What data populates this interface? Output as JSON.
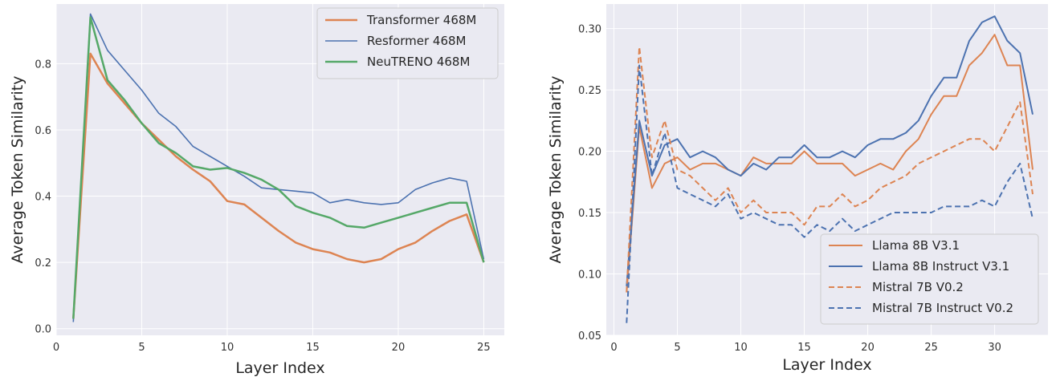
{
  "chart_data": [
    {
      "type": "line",
      "xlabel": "Layer Index",
      "ylabel": "Average Token Similarity",
      "xlim": [
        0,
        26.2
      ],
      "ylim": [
        -0.02,
        0.98
      ],
      "xticks": [
        0,
        5,
        10,
        15,
        20,
        25
      ],
      "yticks": [
        0.0,
        0.2,
        0.4,
        0.6,
        0.8
      ],
      "xtick_labels": [
        "0",
        "5",
        "10",
        "15",
        "20",
        "25"
      ],
      "ytick_labels": [
        "0.0",
        "0.2",
        "0.4",
        "0.6",
        "0.8"
      ],
      "grid": true,
      "legend_position": "top-right",
      "series": [
        {
          "name": "Transformer 468M",
          "color": "#dd8452",
          "dash": false,
          "width": 2.5,
          "x": [
            1,
            2,
            3,
            4,
            5,
            6,
            7,
            8,
            9,
            10,
            11,
            12,
            13,
            14,
            15,
            16,
            17,
            18,
            19,
            20,
            21,
            22,
            23,
            24,
            25
          ],
          "y": [
            0.03,
            0.83,
            0.74,
            0.68,
            0.62,
            0.57,
            0.52,
            0.48,
            0.445,
            0.385,
            0.375,
            0.335,
            0.295,
            0.26,
            0.24,
            0.23,
            0.21,
            0.2,
            0.21,
            0.24,
            0.26,
            0.295,
            0.325,
            0.345,
            0.2
          ]
        },
        {
          "name": "Resformer 468M",
          "color": "#4c72b0",
          "dash": false,
          "width": 1.6,
          "x": [
            1,
            2,
            3,
            4,
            5,
            6,
            7,
            8,
            9,
            10,
            11,
            12,
            13,
            14,
            15,
            16,
            17,
            18,
            19,
            20,
            21,
            22,
            23,
            24,
            25
          ],
          "y": [
            0.02,
            0.95,
            0.84,
            0.78,
            0.72,
            0.65,
            0.61,
            0.55,
            0.52,
            0.49,
            0.46,
            0.425,
            0.42,
            0.415,
            0.41,
            0.38,
            0.39,
            0.38,
            0.375,
            0.38,
            0.42,
            0.44,
            0.455,
            0.445,
            0.21
          ]
        },
        {
          "name": "NeuTRENO 468M",
          "color": "#55a868",
          "dash": false,
          "width": 2.5,
          "x": [
            1,
            2,
            3,
            4,
            5,
            6,
            7,
            8,
            9,
            10,
            11,
            12,
            13,
            14,
            15,
            16,
            17,
            18,
            19,
            20,
            21,
            22,
            23,
            24,
            25
          ],
          "y": [
            0.03,
            0.94,
            0.75,
            0.69,
            0.62,
            0.56,
            0.53,
            0.49,
            0.48,
            0.485,
            0.47,
            0.45,
            0.42,
            0.37,
            0.35,
            0.335,
            0.31,
            0.305,
            0.32,
            0.335,
            0.35,
            0.365,
            0.38,
            0.38,
            0.2
          ]
        }
      ]
    },
    {
      "type": "line",
      "xlabel": "Layer Index",
      "ylabel": "Average Token Similarity",
      "xlim": [
        -0.6,
        34.2
      ],
      "ylim": [
        0.05,
        0.32
      ],
      "xticks": [
        0,
        5,
        10,
        15,
        20,
        25,
        30
      ],
      "yticks": [
        0.05,
        0.1,
        0.15,
        0.2,
        0.25,
        0.3
      ],
      "xtick_labels": [
        "0",
        "5",
        "10",
        "15",
        "20",
        "25",
        "30"
      ],
      "ytick_labels": [
        "0.05",
        "0.10",
        "0.15",
        "0.20",
        "0.25",
        "0.30"
      ],
      "grid": true,
      "legend_position": "bottom-right",
      "series": [
        {
          "name": "Llama 8B V3.1",
          "color": "#dd8452",
          "dash": false,
          "width": 2,
          "x": [
            1,
            2,
            3,
            4,
            5,
            6,
            7,
            8,
            9,
            10,
            11,
            12,
            13,
            14,
            15,
            16,
            17,
            18,
            19,
            20,
            21,
            22,
            23,
            24,
            25,
            26,
            27,
            28,
            29,
            30,
            31,
            32,
            33
          ],
          "y": [
            0.085,
            0.22,
            0.17,
            0.19,
            0.195,
            0.185,
            0.19,
            0.19,
            0.185,
            0.18,
            0.195,
            0.19,
            0.19,
            0.19,
            0.2,
            0.19,
            0.19,
            0.19,
            0.18,
            0.185,
            0.19,
            0.185,
            0.2,
            0.21,
            0.23,
            0.245,
            0.245,
            0.27,
            0.28,
            0.295,
            0.27,
            0.27,
            0.185
          ]
        },
        {
          "name": "Llama 8B Instruct V3.1",
          "color": "#4c72b0",
          "dash": false,
          "width": 2,
          "x": [
            1,
            2,
            3,
            4,
            5,
            6,
            7,
            8,
            9,
            10,
            11,
            12,
            13,
            14,
            15,
            16,
            17,
            18,
            19,
            20,
            21,
            22,
            23,
            24,
            25,
            26,
            27,
            28,
            29,
            30,
            31,
            32,
            33
          ],
          "y": [
            0.09,
            0.225,
            0.18,
            0.205,
            0.21,
            0.195,
            0.2,
            0.195,
            0.185,
            0.18,
            0.19,
            0.185,
            0.195,
            0.195,
            0.205,
            0.195,
            0.195,
            0.2,
            0.195,
            0.205,
            0.21,
            0.21,
            0.215,
            0.225,
            0.245,
            0.26,
            0.26,
            0.29,
            0.305,
            0.31,
            0.29,
            0.28,
            0.23
          ]
        },
        {
          "name": "Mistral 7B V0.2",
          "color": "#dd8452",
          "dash": true,
          "width": 2,
          "x": [
            1,
            2,
            3,
            4,
            5,
            6,
            7,
            8,
            9,
            10,
            11,
            12,
            13,
            14,
            15,
            16,
            17,
            18,
            19,
            20,
            21,
            22,
            23,
            24,
            25,
            26,
            27,
            28,
            29,
            30,
            31,
            32,
            33
          ],
          "y": [
            0.085,
            0.285,
            0.195,
            0.225,
            0.185,
            0.18,
            0.17,
            0.16,
            0.17,
            0.15,
            0.16,
            0.15,
            0.15,
            0.15,
            0.14,
            0.155,
            0.155,
            0.165,
            0.155,
            0.16,
            0.17,
            0.175,
            0.18,
            0.19,
            0.195,
            0.2,
            0.205,
            0.21,
            0.21,
            0.2,
            0.22,
            0.24,
            0.165
          ]
        },
        {
          "name": "Mistral 7B Instruct V0.2",
          "color": "#4c72b0",
          "dash": true,
          "width": 2,
          "x": [
            1,
            2,
            3,
            4,
            5,
            6,
            7,
            8,
            9,
            10,
            11,
            12,
            13,
            14,
            15,
            16,
            17,
            18,
            19,
            20,
            21,
            22,
            23,
            24,
            25,
            26,
            27,
            28,
            29,
            30,
            31,
            32,
            33
          ],
          "y": [
            0.06,
            0.27,
            0.18,
            0.215,
            0.17,
            0.165,
            0.16,
            0.155,
            0.165,
            0.145,
            0.15,
            0.145,
            0.14,
            0.14,
            0.13,
            0.14,
            0.135,
            0.145,
            0.135,
            0.14,
            0.145,
            0.15,
            0.15,
            0.15,
            0.15,
            0.155,
            0.155,
            0.155,
            0.16,
            0.155,
            0.175,
            0.19,
            0.145
          ]
        }
      ]
    }
  ]
}
